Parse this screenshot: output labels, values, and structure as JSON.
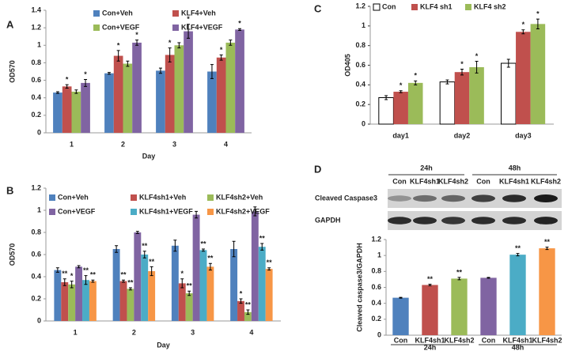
{
  "chart_data": [
    {
      "type": "bar",
      "panel": "A",
      "y_label": "OD570",
      "x_label": "Day",
      "categories": [
        "1",
        "2",
        "3",
        "4"
      ],
      "ylim": [
        0,
        1.4
      ],
      "yticks": [
        0,
        0.2,
        0.4,
        0.6,
        0.8,
        1,
        1.2,
        1.4
      ],
      "series": [
        {
          "name": "Con+Veh",
          "color": "#4f81bd",
          "values": [
            0.46,
            0.68,
            0.71,
            0.7
          ],
          "errors": [
            0.01,
            0.01,
            0.03,
            0.08
          ],
          "significance": [
            null,
            null,
            null,
            null
          ]
        },
        {
          "name": "KLF4+Veh",
          "color": "#c0504d",
          "values": [
            0.53,
            0.88,
            0.89,
            0.86
          ],
          "errors": [
            0.02,
            0.06,
            0.08,
            0.03
          ],
          "significance": [
            "*",
            "*",
            "*",
            "*"
          ]
        },
        {
          "name": "Con+VEGF",
          "color": "#9bbb59",
          "values": [
            0.47,
            0.79,
            1.0,
            1.03
          ],
          "errors": [
            0.02,
            0.03,
            0.03,
            0.03
          ],
          "significance": [
            null,
            null,
            null,
            null
          ]
        },
        {
          "name": "KLF4+VEGF",
          "color": "#8064a2",
          "values": [
            0.57,
            1.03,
            1.16,
            1.18
          ],
          "errors": [
            0.04,
            0.03,
            0.08,
            0.01
          ],
          "significance": [
            "*",
            "*",
            "*",
            "*"
          ]
        }
      ]
    },
    {
      "type": "bar",
      "panel": "B",
      "y_label": "OD570",
      "x_label": "Day",
      "categories": [
        "1",
        "2",
        "3",
        "4"
      ],
      "ylim": [
        0,
        1.2
      ],
      "yticks": [
        0,
        0.2,
        0.4,
        0.6,
        0.8,
        1,
        1.2
      ],
      "series": [
        {
          "name": "Con+Veh",
          "color": "#4f81bd",
          "values": [
            0.46,
            0.65,
            0.68,
            0.65
          ],
          "errors": [
            0.02,
            0.03,
            0.05,
            0.07
          ],
          "significance": [
            null,
            null,
            null,
            null
          ]
        },
        {
          "name": "KLF4sh1+Veh",
          "color": "#c0504d",
          "values": [
            0.35,
            0.36,
            0.34,
            0.18
          ],
          "errors": [
            0.03,
            0.01,
            0.04,
            0.02
          ],
          "significance": [
            "**",
            "**",
            "*",
            "*"
          ]
        },
        {
          "name": "KLF4sh2+Veh",
          "color": "#9bbb59",
          "values": [
            0.33,
            0.29,
            0.25,
            0.08
          ],
          "errors": [
            0.03,
            0.01,
            0.02,
            0.02
          ],
          "significance": [
            "*",
            "**",
            "**",
            "**"
          ]
        },
        {
          "name": "Con+VEGF",
          "color": "#8064a2",
          "values": [
            0.49,
            0.8,
            0.96,
            0.99
          ],
          "errors": [
            0.01,
            0.01,
            0.03,
            0.04
          ],
          "significance": [
            null,
            null,
            null,
            null
          ]
        },
        {
          "name": "KLF4sh1+VEGF",
          "color": "#4bacc6",
          "values": [
            0.37,
            0.6,
            0.64,
            0.67
          ],
          "errors": [
            0.04,
            0.03,
            0.01,
            0.03
          ],
          "significance": [
            "**",
            "**",
            "**",
            "**"
          ]
        },
        {
          "name": "KLF4sh2+VEGF",
          "color": "#f79646",
          "values": [
            0.36,
            0.45,
            0.49,
            0.47
          ],
          "errors": [
            0.01,
            0.04,
            0.03,
            0.01
          ],
          "significance": [
            "**",
            "**",
            "**",
            "**"
          ]
        }
      ]
    },
    {
      "type": "bar",
      "panel": "C",
      "y_label": "OD405",
      "categories": [
        "day1",
        "day2",
        "day3"
      ],
      "ylim": [
        0,
        1.2
      ],
      "yticks": [
        0,
        0.2,
        0.4,
        0.6,
        0.8,
        1,
        1.2
      ],
      "series": [
        {
          "name": "Con",
          "color": "#ffffff",
          "values": [
            0.27,
            0.43,
            0.62
          ],
          "errors": [
            0.02,
            0.02,
            0.04
          ],
          "significance": [
            null,
            null,
            null
          ]
        },
        {
          "name": "KLF4 sh1",
          "color": "#c0504d",
          "values": [
            0.33,
            0.53,
            0.94
          ],
          "errors": [
            0.01,
            0.03,
            0.02
          ],
          "significance": [
            "*",
            "*",
            "*"
          ]
        },
        {
          "name": "KLF4 sh2",
          "color": "#9bbb59",
          "values": [
            0.42,
            0.58,
            1.02
          ],
          "errors": [
            0.02,
            0.06,
            0.05
          ],
          "significance": [
            "*",
            "*",
            "*"
          ]
        }
      ]
    },
    {
      "type": "bar",
      "panel": "D",
      "y_label": "Cleaved caspase3/GAPDH",
      "categories": [
        "Con",
        "KLF4sh1",
        "KLF4sh2",
        "Con",
        "KLF4sh1",
        "KLF4sh2"
      ],
      "groups": [
        "24h",
        "48h"
      ],
      "ylim": [
        0,
        1.2
      ],
      "yticks": [
        0,
        0.2,
        0.4,
        0.6,
        0.8,
        1,
        1.2
      ],
      "values": [
        0.47,
        0.63,
        0.71,
        0.72,
        1.01,
        1.09
      ],
      "errors": [
        0.005,
        0.01,
        0.015,
        0.005,
        0.015,
        0.015
      ],
      "colors": [
        "#4f81bd",
        "#c0504d",
        "#9bbb59",
        "#8064a2",
        "#4bacc6",
        "#f79646"
      ],
      "significance": [
        null,
        "**",
        "**",
        null,
        "**",
        "**"
      ]
    }
  ],
  "blot": {
    "times": [
      "24h",
      "48h"
    ],
    "lanes": [
      "Con",
      "KLF4sh1",
      "KLF4sh2",
      "Con",
      "KLF4sh1",
      "KLF4sh2"
    ],
    "rows": [
      "Cleaved Caspase3",
      "GAPDH"
    ]
  }
}
